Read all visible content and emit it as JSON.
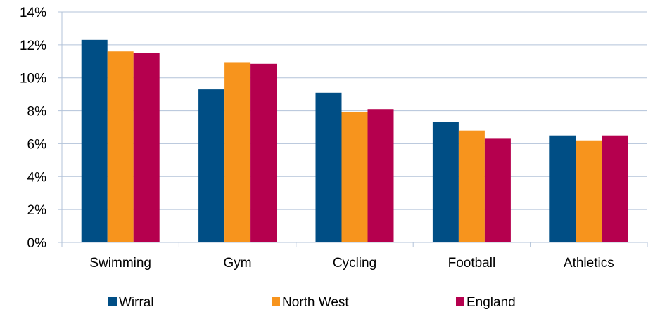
{
  "chart_data": {
    "type": "bar",
    "categories": [
      "Swimming",
      "Gym",
      "Cycling",
      "Football",
      "Athletics"
    ],
    "series": [
      {
        "name": "Wirral",
        "color": "#004E85",
        "values": [
          12.3,
          9.3,
          9.1,
          7.3,
          6.5
        ]
      },
      {
        "name": "North West",
        "color": "#F7941D",
        "values": [
          11.6,
          10.95,
          7.9,
          6.8,
          6.2
        ]
      },
      {
        "name": "England",
        "color": "#B5004E",
        "values": [
          11.5,
          10.85,
          8.1,
          6.3,
          6.5
        ]
      }
    ],
    "yticks": [
      "0%",
      "2%",
      "4%",
      "6%",
      "8%",
      "10%",
      "12%",
      "14%"
    ],
    "ylim": [
      0,
      14
    ],
    "ytick_step": 2,
    "y_unit": "%",
    "grid": true,
    "grid_color": "#B3C3D9",
    "axis_color": "#B3C3D9",
    "legend_position": "bottom"
  }
}
